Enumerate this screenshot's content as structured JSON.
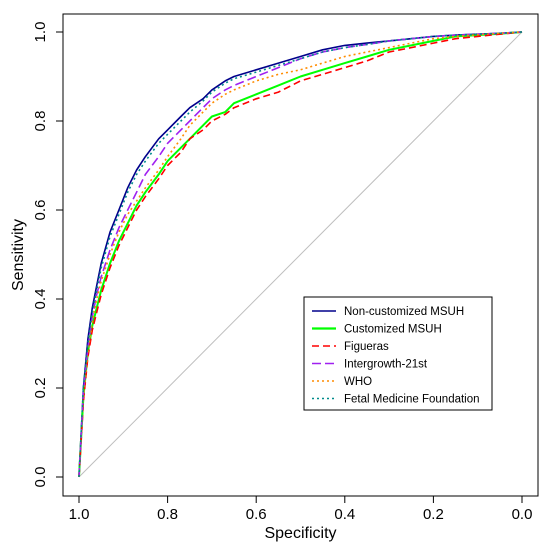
{
  "chart_data": {
    "type": "line",
    "xlabel": "Specificity",
    "ylabel": "Sensitivity",
    "xlim": [
      1.0,
      0.0
    ],
    "ylim": [
      0.0,
      1.0
    ],
    "x_reversed": true,
    "grid": false,
    "legend_position": "bottom-right",
    "x_ticks": [
      {
        "value": 1.0,
        "label": "1.0"
      },
      {
        "value": 0.8,
        "label": "0.8"
      },
      {
        "value": 0.6,
        "label": "0.6"
      },
      {
        "value": 0.4,
        "label": "0.4"
      },
      {
        "value": 0.2,
        "label": "0.2"
      },
      {
        "value": 0.0,
        "label": "0.0"
      }
    ],
    "y_ticks": [
      {
        "value": 0.0,
        "label": "0.0"
      },
      {
        "value": 0.2,
        "label": "0.2"
      },
      {
        "value": 0.4,
        "label": "0.4"
      },
      {
        "value": 0.6,
        "label": "0.6"
      },
      {
        "value": 0.8,
        "label": "0.8"
      },
      {
        "value": 1.0,
        "label": "1.0"
      }
    ],
    "reference_line": {
      "from": [
        1.0,
        0.0
      ],
      "to": [
        0.0,
        1.0
      ],
      "color": "#bebebe"
    },
    "series": [
      {
        "name": "Non-customized MSUH",
        "color": "#00008b",
        "dash": "solid",
        "x": [
          1.0,
          0.99,
          0.98,
          0.97,
          0.96,
          0.95,
          0.93,
          0.91,
          0.89,
          0.87,
          0.85,
          0.82,
          0.8,
          0.77,
          0.75,
          0.72,
          0.7,
          0.67,
          0.65,
          0.6,
          0.55,
          0.5,
          0.45,
          0.4,
          0.35,
          0.3,
          0.25,
          0.2,
          0.15,
          0.1,
          0.05,
          0.0
        ],
        "y": [
          0.0,
          0.2,
          0.31,
          0.38,
          0.43,
          0.48,
          0.55,
          0.6,
          0.65,
          0.69,
          0.72,
          0.76,
          0.78,
          0.81,
          0.83,
          0.85,
          0.87,
          0.89,
          0.9,
          0.915,
          0.93,
          0.945,
          0.96,
          0.97,
          0.975,
          0.98,
          0.985,
          0.99,
          0.993,
          0.995,
          0.997,
          1.0
        ]
      },
      {
        "name": "Customized MSUH",
        "color": "#00ff00",
        "dash": "solid",
        "x": [
          1.0,
          0.99,
          0.98,
          0.97,
          0.96,
          0.95,
          0.93,
          0.91,
          0.89,
          0.87,
          0.85,
          0.82,
          0.8,
          0.77,
          0.75,
          0.72,
          0.7,
          0.67,
          0.65,
          0.6,
          0.55,
          0.5,
          0.45,
          0.4,
          0.35,
          0.3,
          0.25,
          0.2,
          0.15,
          0.1,
          0.05,
          0.0
        ],
        "y": [
          0.0,
          0.18,
          0.28,
          0.34,
          0.38,
          0.42,
          0.48,
          0.53,
          0.57,
          0.61,
          0.64,
          0.68,
          0.71,
          0.74,
          0.76,
          0.79,
          0.81,
          0.82,
          0.84,
          0.86,
          0.88,
          0.9,
          0.915,
          0.93,
          0.945,
          0.96,
          0.97,
          0.98,
          0.99,
          0.993,
          0.996,
          1.0
        ]
      },
      {
        "name": "Figueras",
        "color": "#ff0000",
        "dash": "dashed",
        "x": [
          1.0,
          0.99,
          0.98,
          0.97,
          0.96,
          0.95,
          0.93,
          0.91,
          0.89,
          0.87,
          0.85,
          0.82,
          0.8,
          0.77,
          0.75,
          0.72,
          0.7,
          0.67,
          0.65,
          0.6,
          0.55,
          0.5,
          0.45,
          0.4,
          0.35,
          0.3,
          0.25,
          0.2,
          0.15,
          0.1,
          0.05,
          0.0
        ],
        "y": [
          0.0,
          0.17,
          0.27,
          0.33,
          0.37,
          0.41,
          0.47,
          0.52,
          0.56,
          0.6,
          0.63,
          0.67,
          0.7,
          0.73,
          0.76,
          0.78,
          0.8,
          0.815,
          0.83,
          0.85,
          0.865,
          0.89,
          0.905,
          0.92,
          0.935,
          0.955,
          0.965,
          0.975,
          0.985,
          0.99,
          0.995,
          1.0
        ]
      },
      {
        "name": "Intergrowth-21st",
        "color": "#a020f0",
        "dash": "longdash",
        "x": [
          1.0,
          0.99,
          0.98,
          0.97,
          0.96,
          0.95,
          0.93,
          0.91,
          0.89,
          0.87,
          0.85,
          0.82,
          0.8,
          0.77,
          0.75,
          0.72,
          0.7,
          0.67,
          0.65,
          0.6,
          0.55,
          0.5,
          0.45,
          0.4,
          0.35,
          0.3,
          0.25,
          0.2,
          0.15,
          0.1,
          0.05,
          0.0
        ],
        "y": [
          0.0,
          0.19,
          0.29,
          0.36,
          0.41,
          0.45,
          0.51,
          0.56,
          0.6,
          0.64,
          0.68,
          0.72,
          0.75,
          0.78,
          0.8,
          0.83,
          0.85,
          0.87,
          0.88,
          0.9,
          0.92,
          0.94,
          0.955,
          0.965,
          0.972,
          0.98,
          0.985,
          0.99,
          0.993,
          0.995,
          0.997,
          1.0
        ]
      },
      {
        "name": "WHO",
        "color": "#ff8c00",
        "dash": "dotted",
        "x": [
          1.0,
          0.99,
          0.98,
          0.97,
          0.96,
          0.95,
          0.93,
          0.91,
          0.89,
          0.87,
          0.85,
          0.82,
          0.8,
          0.77,
          0.75,
          0.72,
          0.7,
          0.67,
          0.65,
          0.6,
          0.55,
          0.5,
          0.45,
          0.4,
          0.35,
          0.3,
          0.25,
          0.2,
          0.15,
          0.1,
          0.05,
          0.0
        ],
        "y": [
          0.0,
          0.18,
          0.28,
          0.35,
          0.4,
          0.44,
          0.5,
          0.55,
          0.59,
          0.62,
          0.65,
          0.69,
          0.72,
          0.76,
          0.79,
          0.82,
          0.84,
          0.86,
          0.87,
          0.89,
          0.905,
          0.915,
          0.93,
          0.945,
          0.955,
          0.965,
          0.975,
          0.985,
          0.99,
          0.994,
          0.997,
          1.0
        ]
      },
      {
        "name": "Fetal Medicine Foundation",
        "color": "#008b8b",
        "dash": "dotted",
        "x": [
          1.0,
          0.99,
          0.98,
          0.97,
          0.96,
          0.95,
          0.93,
          0.91,
          0.89,
          0.87,
          0.85,
          0.82,
          0.8,
          0.77,
          0.75,
          0.72,
          0.7,
          0.67,
          0.65,
          0.6,
          0.55,
          0.5,
          0.45,
          0.4,
          0.35,
          0.3,
          0.25,
          0.2,
          0.15,
          0.1,
          0.05,
          0.0
        ],
        "y": [
          0.0,
          0.2,
          0.3,
          0.37,
          0.42,
          0.47,
          0.54,
          0.59,
          0.64,
          0.68,
          0.71,
          0.75,
          0.77,
          0.8,
          0.82,
          0.845,
          0.865,
          0.885,
          0.895,
          0.91,
          0.925,
          0.94,
          0.955,
          0.965,
          0.972,
          0.98,
          0.985,
          0.99,
          0.993,
          0.995,
          0.997,
          1.0
        ]
      }
    ]
  }
}
